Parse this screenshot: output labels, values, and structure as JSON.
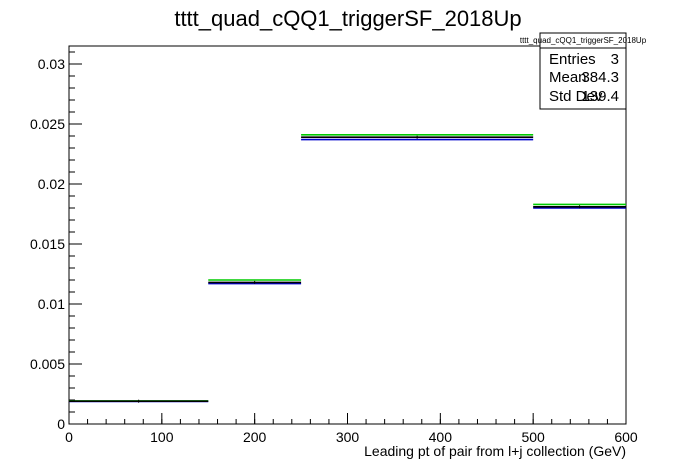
{
  "chart_data": {
    "type": "histogram",
    "title": "tttt_quad_cQQ1_triggerSF_2018Up",
    "xlabel": "Leading pt of pair from l+j collection (GeV)",
    "ylabel": "",
    "xlim": [
      0,
      600
    ],
    "ylim": [
      0,
      0.0315
    ],
    "x_ticks": [
      0,
      100,
      200,
      300,
      400,
      500,
      600
    ],
    "x_tick_labels": [
      "0",
      "100",
      "200",
      "300",
      "400",
      "500",
      "600"
    ],
    "y_ticks": [
      0,
      0.005,
      0.01,
      0.015,
      0.02,
      0.025,
      0.03
    ],
    "y_tick_labels": [
      "0",
      "0.005",
      "0.01",
      "0.015",
      "0.02",
      "0.025",
      "0.03"
    ],
    "grid": false,
    "bins": [
      {
        "low": 0,
        "high": 150,
        "value": 0.0019
      },
      {
        "low": 150,
        "high": 250,
        "value": 0.0118
      },
      {
        "low": 250,
        "high": 500,
        "value": 0.0239
      },
      {
        "low": 500,
        "high": 600,
        "value": 0.0181
      }
    ],
    "series": [
      {
        "color": "#000000",
        "values": [
          0.0019,
          0.0118,
          0.0239,
          0.0181
        ]
      },
      {
        "color": "#00cc00",
        "values": [
          0.00192,
          0.012,
          0.0241,
          0.0183
        ]
      },
      {
        "color": "#0000cc",
        "values": [
          0.00188,
          0.0117,
          0.0237,
          0.018
        ]
      }
    ],
    "stats_box": {
      "title": "tttt_quad_cQQ1_triggerSF_2018Up",
      "rows": [
        {
          "label": "Entries",
          "value": "3"
        },
        {
          "label": "Mean",
          "value": "384.3"
        },
        {
          "label": "Std Dev",
          "value": "139.4"
        }
      ],
      "placement": "top-right"
    }
  }
}
